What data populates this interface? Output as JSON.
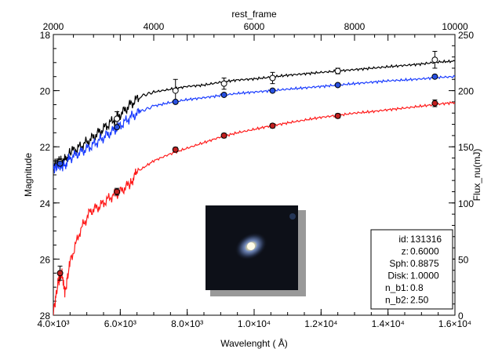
{
  "chart_data": {
    "type": "line",
    "xlabel": "Wavelenght ( Å)",
    "ylabel": "Magnitude",
    "x2label": "rest_frame",
    "y2label": "Flux_nu(mJ)",
    "xlim": [
      4000,
      16000
    ],
    "ylim": [
      28,
      18
    ],
    "x2lim": [
      2000,
      10000
    ],
    "y2lim": [
      0,
      250
    ],
    "x_ticks": [
      4000,
      6000,
      8000,
      10000,
      12000,
      14000,
      16000
    ],
    "x_tick_labels": [
      "4.0×10³",
      "6.0×10³",
      "8.0×10³",
      "1.0×10⁴",
      "1.2×10⁴",
      "1.4×10⁴",
      "1.6×10⁴"
    ],
    "y_ticks": [
      18,
      20,
      22,
      24,
      26,
      28
    ],
    "x2_ticks": [
      2000,
      4000,
      6000,
      8000,
      10000
    ],
    "y2_ticks": [
      0,
      50,
      100,
      150,
      200,
      250
    ],
    "series": [
      {
        "color": "#000000",
        "x": [
          4000,
          4150,
          4300,
          4500,
          4800,
          5100,
          5400,
          5700,
          6000,
          6300,
          6600,
          7000,
          7500,
          8000,
          8500,
          9000,
          9500,
          10000,
          10500,
          11000,
          11500,
          12000,
          12500,
          13000,
          13500,
          14000,
          14500,
          15000,
          15500,
          16000
        ],
        "y": [
          22.7,
          22.5,
          22.55,
          22.2,
          22.0,
          21.75,
          21.45,
          21.15,
          20.85,
          20.5,
          20.2,
          20.05,
          19.95,
          19.85,
          19.8,
          19.7,
          19.62,
          19.58,
          19.52,
          19.45,
          19.4,
          19.35,
          19.3,
          19.25,
          19.2,
          19.15,
          19.1,
          19.05,
          18.98,
          18.95
        ],
        "points": {
          "x": [
            4200,
            5900,
            7650,
            9100,
            10550,
            12500,
            15400
          ],
          "y": [
            22.55,
            21.0,
            20.0,
            19.75,
            19.55,
            19.3,
            18.9
          ],
          "err": [
            0.12,
            0.25,
            0.4,
            0.2,
            0.2,
            0.1,
            0.3
          ]
        }
      },
      {
        "color": "#1a3cff",
        "x": [
          4000,
          4150,
          4300,
          4500,
          4800,
          5100,
          5400,
          5700,
          6000,
          6300,
          6600,
          7000,
          7500,
          8000,
          8500,
          9000,
          9500,
          10000,
          10500,
          11000,
          11500,
          12000,
          12500,
          13000,
          13500,
          14000,
          14500,
          15000,
          15500,
          16000
        ],
        "y": [
          22.8,
          22.65,
          22.7,
          22.4,
          22.2,
          22.0,
          21.75,
          21.5,
          21.25,
          20.95,
          20.75,
          20.55,
          20.42,
          20.32,
          20.25,
          20.17,
          20.1,
          20.05,
          20.0,
          19.95,
          19.9,
          19.85,
          19.8,
          19.75,
          19.7,
          19.65,
          19.62,
          19.58,
          19.53,
          19.5
        ],
        "points": {
          "x": [
            4200,
            5900,
            7650,
            9100,
            10550,
            12500,
            15400
          ],
          "y": [
            22.6,
            21.3,
            20.4,
            20.15,
            20.0,
            19.8,
            19.5
          ],
          "err": [
            0,
            0,
            0,
            0,
            0,
            0,
            0
          ]
        }
      },
      {
        "color": "#ff1a1a",
        "x": [
          4000,
          4150,
          4250,
          4350,
          4500,
          4800,
          5100,
          5400,
          5700,
          6000,
          6300,
          6500,
          7000,
          7500,
          8000,
          8500,
          9000,
          9500,
          10000,
          10500,
          11000,
          11500,
          12000,
          12500,
          13000,
          13500,
          14000,
          14500,
          15000,
          15500,
          16000
        ],
        "y": [
          27.9,
          26.8,
          26.5,
          27.2,
          26.1,
          25.0,
          24.3,
          24.1,
          23.8,
          23.6,
          23.3,
          22.9,
          22.5,
          22.25,
          22.05,
          21.85,
          21.65,
          21.5,
          21.38,
          21.25,
          21.15,
          21.05,
          20.95,
          20.88,
          20.8,
          20.75,
          20.68,
          20.62,
          20.55,
          20.48,
          20.42
        ],
        "points": {
          "x": [
            4200,
            5900,
            7650,
            9100,
            10550,
            12500,
            15400
          ],
          "y": [
            26.5,
            23.6,
            22.1,
            21.6,
            21.25,
            20.9,
            20.45
          ],
          "err": [
            0.25,
            0.12,
            0.08,
            0.08,
            0.08,
            0.08,
            0.12
          ]
        }
      }
    ],
    "annotation": [
      {
        "key": "id:",
        "value": "131316"
      },
      {
        "key": "z:",
        "value": "0.6000"
      },
      {
        "key": "Sph:",
        "value": "0.8875"
      },
      {
        "key": "Disk:",
        "value": "1.0000"
      },
      {
        "key": "n_b1:",
        "value": "0.8"
      },
      {
        "key": "n_b2:",
        "value": "2.50"
      }
    ],
    "inset": "galaxy-image"
  }
}
